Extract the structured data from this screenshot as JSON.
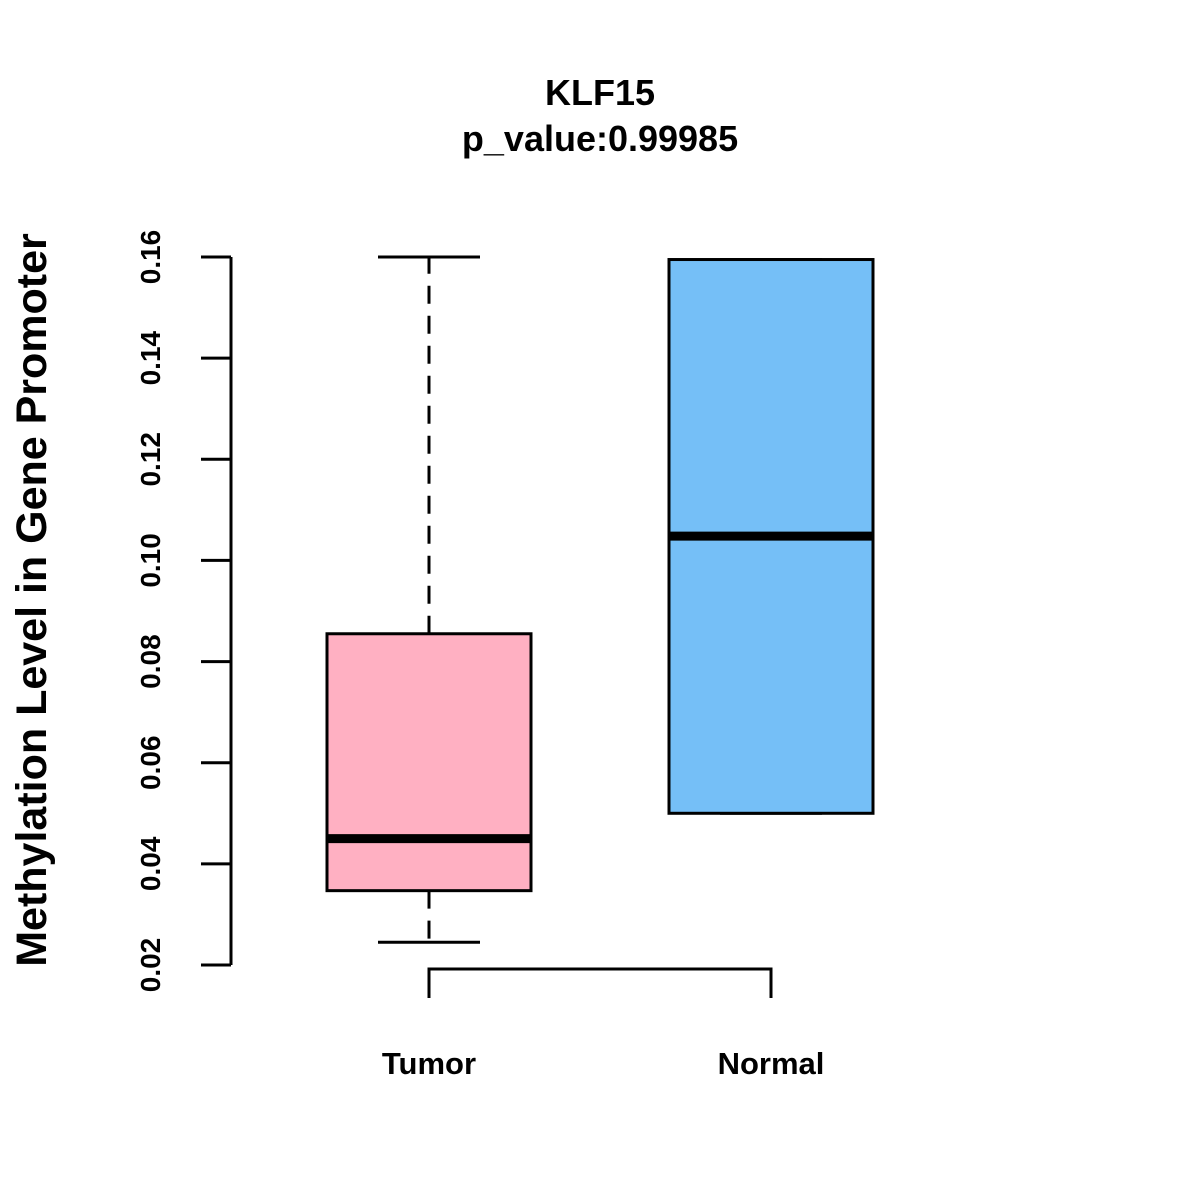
{
  "chart_data": {
    "type": "boxplot",
    "title": "KLF15",
    "subtitle": "p_value:0.99985",
    "xlabel": "",
    "ylabel": "Methylation Level in Gene Promoter",
    "ylim": [
      0.02,
      0.16
    ],
    "yticks": [
      0.02,
      0.04,
      0.06,
      0.08,
      0.1,
      0.12,
      0.14,
      0.16
    ],
    "ytick_labels": [
      "0.02",
      "0.04",
      "0.06",
      "0.08",
      "0.10",
      "0.12",
      "0.14",
      "0.16"
    ],
    "categories": [
      "Tumor",
      "Normal"
    ],
    "groups": [
      {
        "name": "Tumor",
        "color": "#FFB0C2",
        "whisker_low": 0.0245,
        "q1": 0.0347,
        "median": 0.045,
        "q3": 0.0855,
        "whisker_high": 0.16
      },
      {
        "name": "Normal",
        "color": "#75BFF7",
        "whisker_low": 0.05,
        "q1": 0.05,
        "median": 0.1048,
        "q3": 0.1595,
        "whisker_high": 0.1595
      }
    ],
    "comparison_bracket": [
      "Tumor",
      "Normal"
    ],
    "grid": false,
    "legend": "none"
  }
}
